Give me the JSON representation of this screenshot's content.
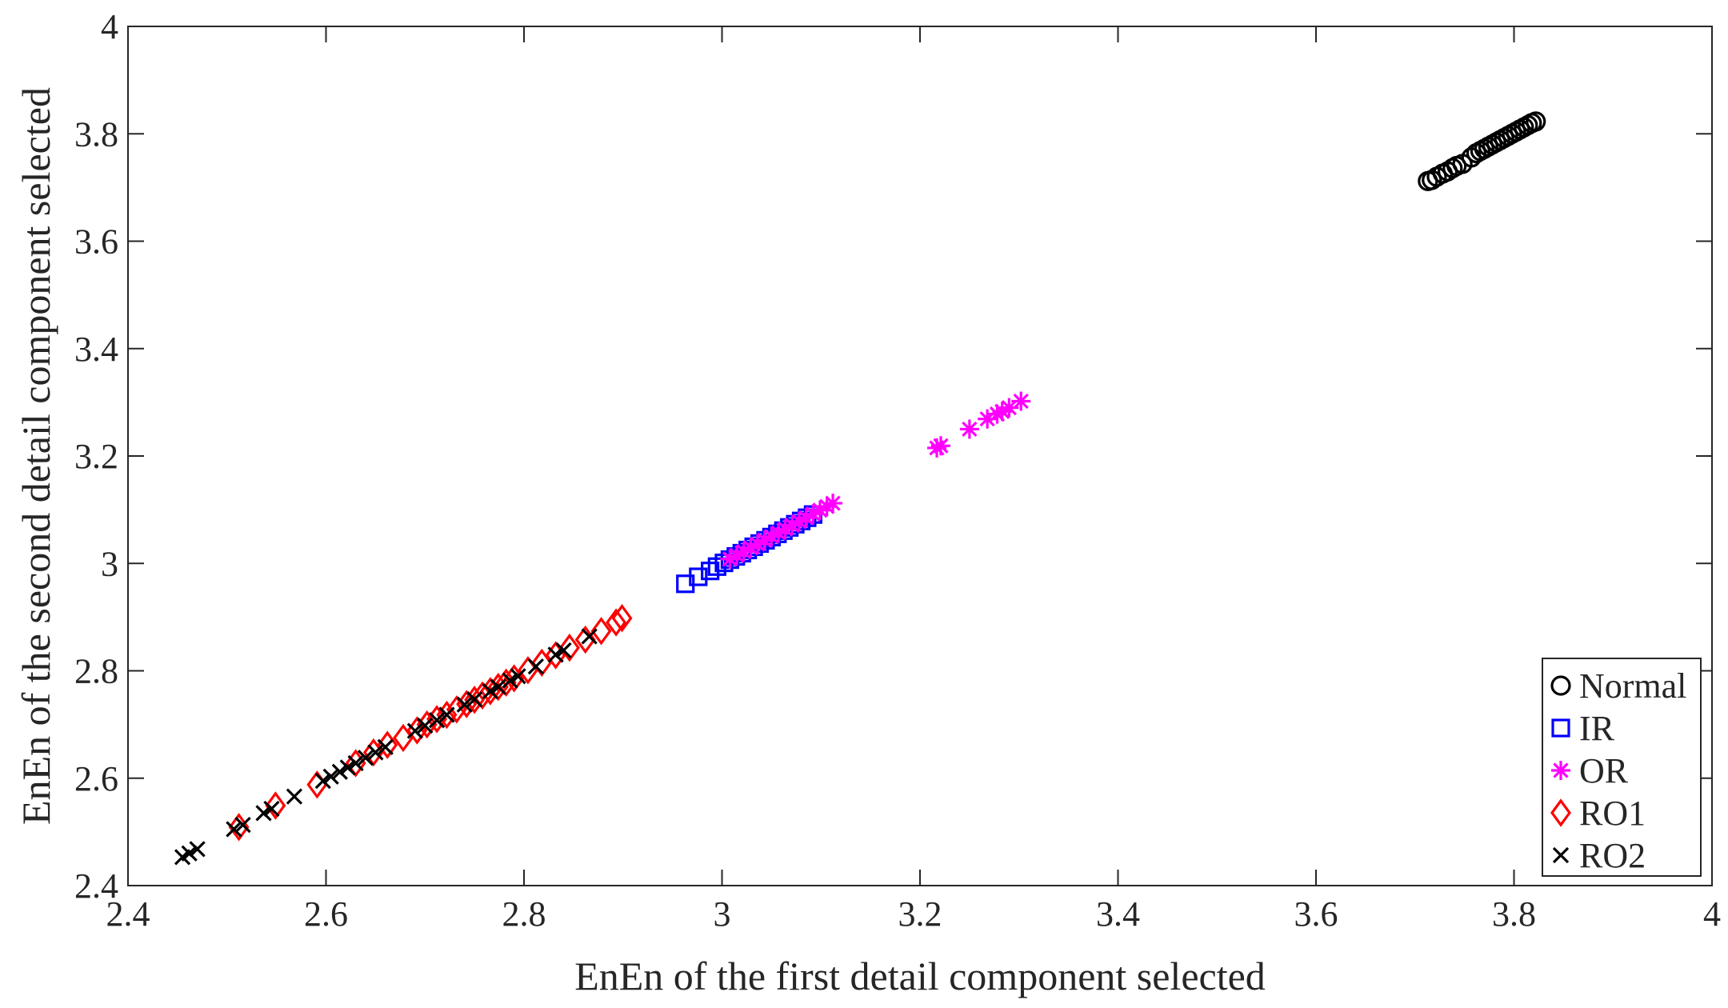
{
  "chart_data": {
    "type": "scatter",
    "xlabel": "EnEn of the first detail component selected",
    "ylabel": "EnEn of the second detail component selected",
    "xlim": [
      2.4,
      4
    ],
    "ylim": [
      2.4,
      4
    ],
    "xticks": [
      "2.4",
      "2.6",
      "2.8",
      "3",
      "3.2",
      "3.4",
      "3.6",
      "3.8",
      "4"
    ],
    "yticks": [
      "2.4",
      "2.6",
      "2.8",
      "3",
      "3.2",
      "3.4",
      "3.6",
      "3.8",
      "4"
    ],
    "grid": false,
    "legend_position": "bottom-right",
    "series": [
      {
        "name": "Normal",
        "marker": "circle",
        "color": "#000000",
        "x": [
          3.713,
          3.717,
          3.722,
          3.728,
          3.733,
          3.738,
          3.742,
          3.748,
          3.757,
          3.762,
          3.766,
          3.77,
          3.774,
          3.778,
          3.782,
          3.786,
          3.79,
          3.794,
          3.798,
          3.802,
          3.806,
          3.81,
          3.814,
          3.818,
          3.822
        ],
        "y": [
          3.712,
          3.714,
          3.72,
          3.726,
          3.73,
          3.736,
          3.74,
          3.744,
          3.756,
          3.764,
          3.768,
          3.772,
          3.776,
          3.78,
          3.784,
          3.788,
          3.792,
          3.796,
          3.8,
          3.804,
          3.808,
          3.812,
          3.816,
          3.82,
          3.823
        ]
      },
      {
        "name": "IR",
        "marker": "square",
        "color": "#0000ff",
        "x": [
          2.963,
          2.976,
          2.988,
          2.995,
          3.002,
          3.008,
          3.014,
          3.02,
          3.026,
          3.032,
          3.038,
          3.044,
          3.05,
          3.056,
          3.062,
          3.068,
          3.074,
          3.08,
          3.086,
          3.092
        ],
        "y": [
          2.962,
          2.975,
          2.986,
          2.994,
          3.001,
          3.007,
          3.013,
          3.019,
          3.025,
          3.031,
          3.037,
          3.043,
          3.049,
          3.055,
          3.061,
          3.067,
          3.073,
          3.079,
          3.085,
          3.091
        ]
      },
      {
        "name": "OR",
        "marker": "asterisk",
        "color": "#ff00ff",
        "x": [
          3.008,
          3.015,
          3.022,
          3.029,
          3.036,
          3.043,
          3.05,
          3.057,
          3.064,
          3.071,
          3.078,
          3.085,
          3.092,
          3.099,
          3.106,
          3.112,
          3.217,
          3.221,
          3.25,
          3.268,
          3.278,
          3.283,
          3.29,
          3.302
        ],
        "y": [
          3.008,
          3.015,
          3.022,
          3.029,
          3.036,
          3.043,
          3.05,
          3.057,
          3.064,
          3.071,
          3.078,
          3.085,
          3.092,
          3.099,
          3.106,
          3.112,
          3.215,
          3.219,
          3.25,
          3.269,
          3.278,
          3.283,
          3.29,
          3.302
        ]
      },
      {
        "name": "RO1",
        "marker": "diamond",
        "color": "#ff0000",
        "x": [
          2.512,
          2.549,
          2.591,
          2.63,
          2.648,
          2.662,
          2.678,
          2.692,
          2.702,
          2.712,
          2.722,
          2.732,
          2.742,
          2.75,
          2.758,
          2.766,
          2.774,
          2.782,
          2.79,
          2.804,
          2.818,
          2.832,
          2.846,
          2.862,
          2.878,
          2.893,
          2.899
        ],
        "y": [
          2.509,
          2.549,
          2.588,
          2.628,
          2.648,
          2.662,
          2.675,
          2.689,
          2.7,
          2.71,
          2.718,
          2.728,
          2.738,
          2.746,
          2.754,
          2.762,
          2.77,
          2.778,
          2.786,
          2.801,
          2.815,
          2.829,
          2.843,
          2.858,
          2.874,
          2.89,
          2.898
        ]
      },
      {
        "name": "RO2",
        "marker": "x",
        "color": "#000000",
        "x": [
          2.455,
          2.462,
          2.47,
          2.507,
          2.516,
          2.537,
          2.545,
          2.568,
          2.597,
          2.605,
          2.614,
          2.622,
          2.63,
          2.64,
          2.65,
          2.66,
          2.69,
          2.7,
          2.712,
          2.722,
          2.74,
          2.75,
          2.766,
          2.774,
          2.786,
          2.794,
          2.812,
          2.832,
          2.84,
          2.866
        ],
        "y": [
          2.453,
          2.46,
          2.468,
          2.505,
          2.513,
          2.535,
          2.543,
          2.566,
          2.595,
          2.603,
          2.612,
          2.62,
          2.628,
          2.638,
          2.648,
          2.658,
          2.688,
          2.698,
          2.708,
          2.718,
          2.737,
          2.747,
          2.762,
          2.77,
          2.782,
          2.79,
          2.808,
          2.83,
          2.838,
          2.864
        ]
      }
    ]
  }
}
